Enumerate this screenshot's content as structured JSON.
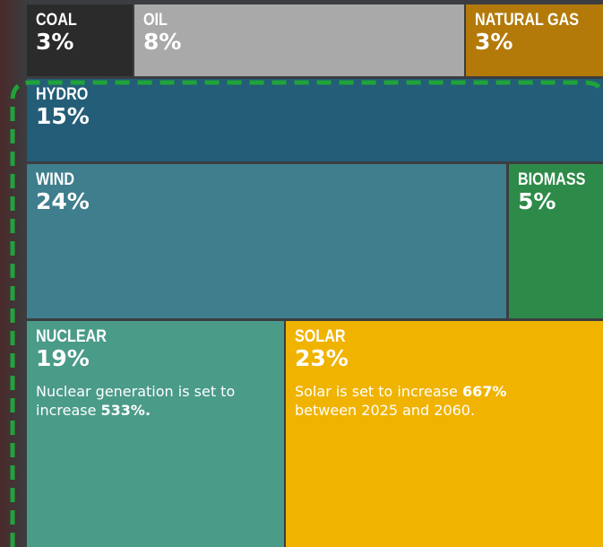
{
  "chart_data": {
    "type": "treemap",
    "items": [
      {
        "name": "COAL",
        "value": 3,
        "value_label": "3%",
        "color": "#2b2b2b"
      },
      {
        "name": "OIL",
        "value": 8,
        "value_label": "8%",
        "color": "#a9a9a9"
      },
      {
        "name": "NATURAL GAS",
        "value": 3,
        "value_label": "3%",
        "color": "#b37a0a"
      },
      {
        "name": "HYDRO",
        "value": 15,
        "value_label": "15%",
        "color": "#245d77"
      },
      {
        "name": "WIND",
        "value": 24,
        "value_label": "24%",
        "color": "#3f7e8c"
      },
      {
        "name": "BIOMASS",
        "value": 5,
        "value_label": "5%",
        "color": "#2e8a48"
      },
      {
        "name": "NUCLEAR",
        "value": 19,
        "value_label": "19%",
        "color": "#4a9b88",
        "note": [
          {
            "text": "Nuclear generation is set to increase",
            "bold": false
          },
          {
            "text": "533%.",
            "bold": true
          }
        ]
      },
      {
        "name": "SOLAR",
        "value": 23,
        "value_label": "23%",
        "color": "#f0b300",
        "note": [
          {
            "text": "Solar is set to increase",
            "bold": false
          },
          {
            "text": "667%",
            "bold": true
          },
          {
            "text": "between 2025 and 2060.",
            "bold": false
          }
        ]
      }
    ]
  }
}
